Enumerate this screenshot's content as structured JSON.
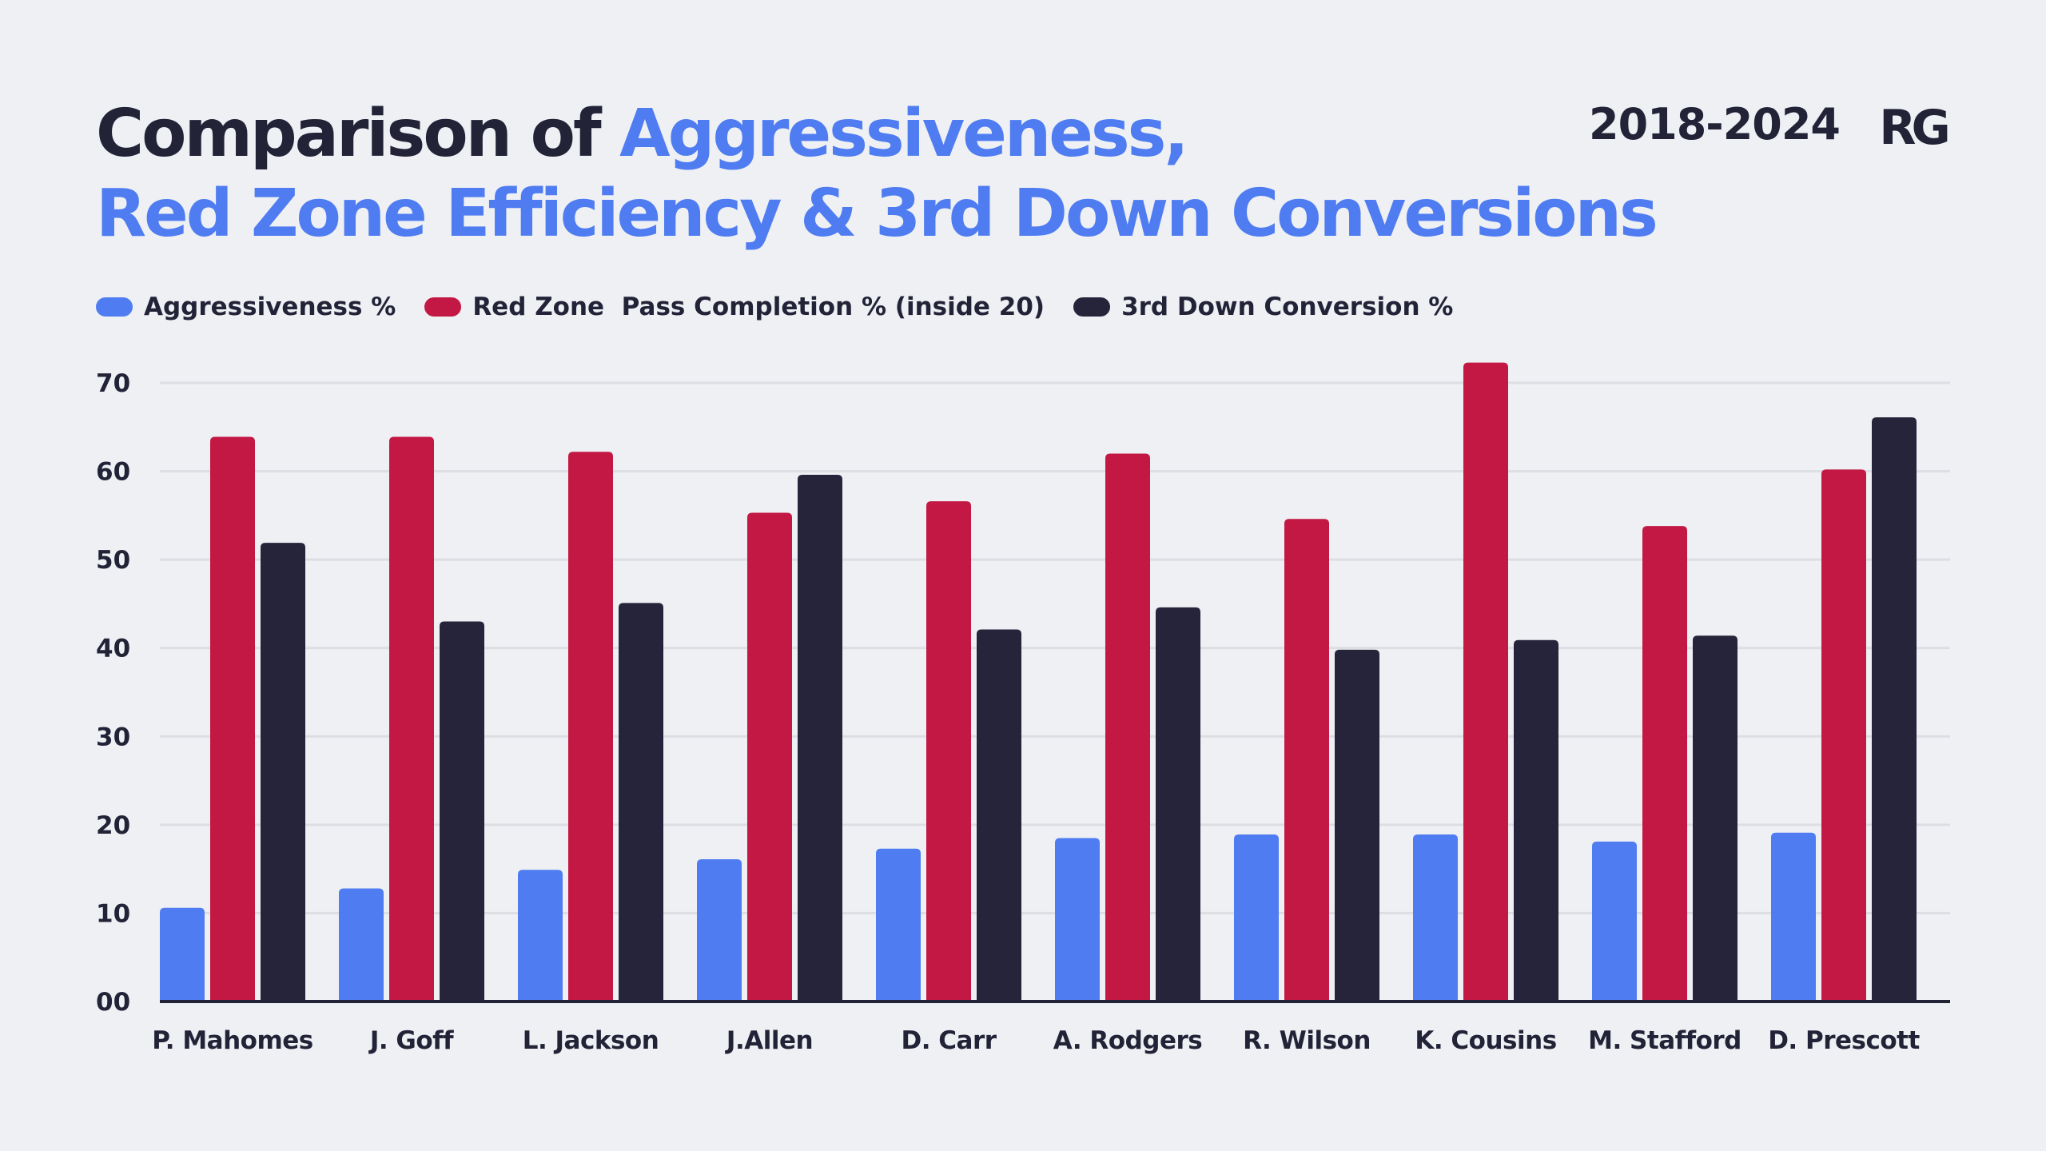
{
  "header": {
    "title_part1": "Comparison of ",
    "title_part2": "Aggressiveness,",
    "title_line2": "Red Zone Efficiency & 3rd Down Conversions",
    "period": "2018-2024",
    "logo_text": "RG"
  },
  "colors": {
    "accent": "#4f7cf1",
    "aggressiveness": "#4f7cf1",
    "red_zone": "#c21843",
    "third_down": "#25243a",
    "text": "#232338",
    "grid": "#dcdee3",
    "background": "#eef0f4"
  },
  "chart_data": {
    "type": "bar",
    "categories": [
      "P. Mahomes",
      "J. Goff",
      "L. Jackson",
      "J.Allen",
      "D. Carr",
      "A. Rodgers",
      "R. Wilson",
      "K. Cousins",
      "M. Stafford",
      "D. Prescott"
    ],
    "series": [
      {
        "name": "Aggressiveness %",
        "values": [
          10.6,
          12.8,
          14.9,
          16.1,
          17.3,
          18.5,
          18.9,
          18.9,
          18.1,
          19.1
        ]
      },
      {
        "name": "Red Zone  Pass Completion % (inside 20)",
        "values": [
          63.9,
          63.9,
          62.2,
          55.3,
          56.6,
          62.0,
          54.6,
          72.3,
          53.8,
          60.2
        ]
      },
      {
        "name": "3rd Down Conversion %",
        "values": [
          51.9,
          43.0,
          45.1,
          59.6,
          42.1,
          44.6,
          39.8,
          40.9,
          41.4,
          66.1
        ]
      }
    ],
    "y_ticks": [
      "00",
      "10",
      "20",
      "30",
      "40",
      "50",
      "60",
      "70"
    ],
    "ylim": [
      0,
      70
    ],
    "xlabel": "",
    "ylabel": "",
    "grid": true,
    "legend_position": "top-left"
  }
}
